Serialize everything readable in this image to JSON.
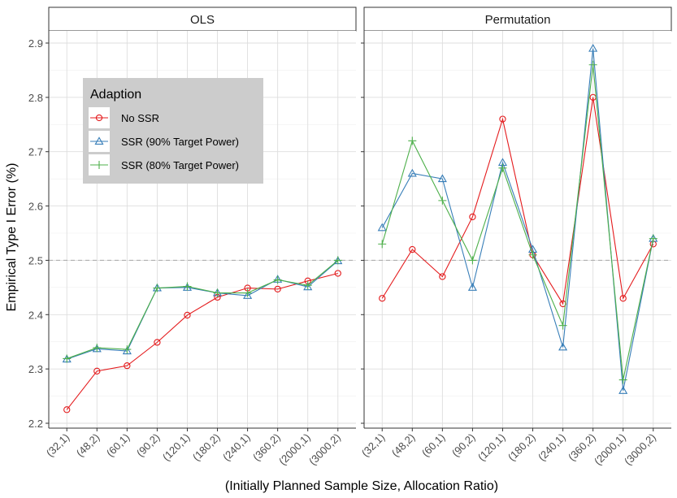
{
  "chart_data": {
    "type": "line",
    "ylabel": "Empirical Type I Error (%)",
    "xlabel": "(Initially Planned Sample Size, Allocation Ratio)",
    "categories": [
      "(32,1)",
      "(48,2)",
      "(60,1)",
      "(90,2)",
      "(120,1)",
      "(180,2)",
      "(240,1)",
      "(360,2)",
      "(2000,1)",
      "(3000,2)"
    ],
    "ylim": [
      2.2,
      2.9
    ],
    "yticks": [
      "2.2",
      "2.3",
      "2.4",
      "2.5",
      "2.6",
      "2.7",
      "2.8",
      "2.9"
    ],
    "reference_line": 2.5,
    "grid": true,
    "legend": {
      "title": "Adaption",
      "placement": "inside-top-left",
      "entries": [
        "No SSR",
        "SSR (90% Target Power)",
        "SSR (80% Target Power)"
      ]
    },
    "colors": {
      "No SSR": "#e41a1c",
      "SSR (90% Target Power)": "#377eb8",
      "SSR (80% Target Power)": "#4daf4a"
    },
    "markers": {
      "No SSR": "circle",
      "SSR (90% Target Power)": "triangle",
      "SSR (80% Target Power)": "plus"
    },
    "panels": [
      {
        "title": "OLS",
        "series": [
          {
            "name": "No SSR",
            "values": [
              2.225,
              2.296,
              2.306,
              2.349,
              2.399,
              2.432,
              2.449,
              2.447,
              2.462,
              2.476
            ]
          },
          {
            "name": "SSR (90% Target Power)",
            "values": [
              2.318,
              2.337,
              2.333,
              2.449,
              2.45,
              2.44,
              2.435,
              2.465,
              2.451,
              2.499
            ]
          },
          {
            "name": "SSR (80% Target Power)",
            "values": [
              2.319,
              2.339,
              2.336,
              2.449,
              2.452,
              2.44,
              2.44,
              2.464,
              2.454,
              2.5
            ]
          }
        ]
      },
      {
        "title": "Permutation",
        "series": [
          {
            "name": "No SSR",
            "values": [
              2.43,
              2.52,
              2.47,
              2.58,
              2.76,
              2.51,
              2.42,
              2.8,
              2.43,
              2.53
            ]
          },
          {
            "name": "SSR (90% Target Power)",
            "values": [
              2.56,
              2.66,
              2.65,
              2.45,
              2.68,
              2.52,
              2.34,
              2.89,
              2.26,
              2.54
            ]
          },
          {
            "name": "SSR (80% Target Power)",
            "values": [
              2.53,
              2.72,
              2.61,
              2.5,
              2.67,
              2.51,
              2.38,
              2.86,
              2.28,
              2.54
            ]
          }
        ]
      }
    ]
  }
}
